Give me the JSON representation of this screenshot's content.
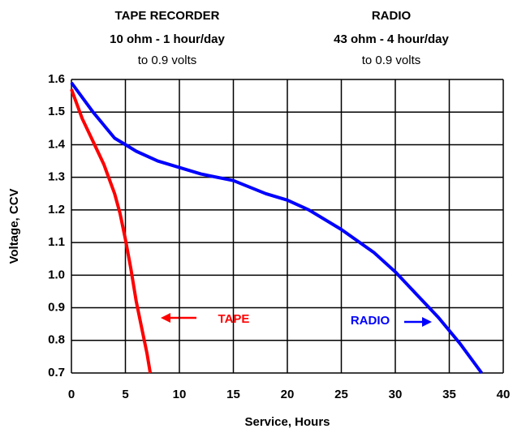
{
  "chart_data": {
    "type": "line",
    "annotations": [
      "TAPE RECORDER",
      "10 ohm - 1 hour/day",
      "to 0.9 volts",
      "RADIO",
      "43 ohm - 4 hour/day",
      "to 0.9 volts"
    ],
    "xlabel": "Service, Hours",
    "ylabel": "Voltage, CCV",
    "xlim": [
      0,
      40
    ],
    "xticks": [
      0,
      5,
      10,
      15,
      20,
      25,
      30,
      35,
      40
    ],
    "ylim": [
      0.7,
      1.6
    ],
    "yticks": [
      1.6,
      1.5,
      1.4,
      1.3,
      1.2,
      1.1,
      {
        "value": 1,
        "label": "1.0"
      },
      0.9,
      0.8,
      0.7
    ],
    "grid": true,
    "series": [
      {
        "name": "TAPE",
        "color": "#ff0000",
        "x": [
          0,
          1,
          2,
          3,
          4,
          4.5,
          5,
          5.5,
          6,
          6.5,
          7,
          7.3
        ],
        "values": [
          1.57,
          1.48,
          1.41,
          1.34,
          1.25,
          1.19,
          1.11,
          1.02,
          0.92,
          0.84,
          0.76,
          0.7
        ]
      },
      {
        "name": "RADIO",
        "color": "#0000ff",
        "x": [
          0,
          2,
          4,
          5,
          6,
          8,
          10,
          12,
          15,
          18,
          20,
          22,
          25,
          28,
          30,
          32,
          34,
          36,
          38
        ],
        "values": [
          1.59,
          1.5,
          1.42,
          1.4,
          1.38,
          1.35,
          1.33,
          1.31,
          1.29,
          1.25,
          1.23,
          1.2,
          1.14,
          1.07,
          1.01,
          0.94,
          0.87,
          0.79,
          0.7
        ]
      }
    ]
  }
}
